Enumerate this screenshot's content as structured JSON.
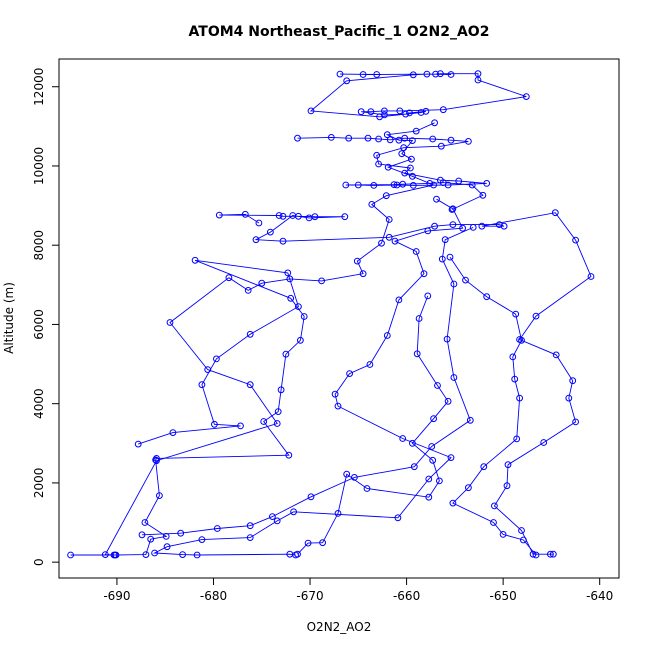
{
  "chart_data": {
    "type": "line",
    "title": "ATOM4 Northeast_Pacific_1 O2N2_AO2",
    "xlabel": "O2N2_AO2",
    "ylabel": "Altitude (m)",
    "xlim": [
      -696,
      -638
    ],
    "ylim": [
      -400,
      12700
    ],
    "x_ticks": [
      -690,
      -680,
      -670,
      -660,
      -650,
      -640
    ],
    "y_ticks": [
      0,
      2000,
      4000,
      6000,
      8000,
      10000,
      12000
    ],
    "marker": "open-circle",
    "colors": {
      "series": "#0000ff",
      "axis": "#000000",
      "background": "#ffffff"
    },
    "grid": false,
    "series": [
      {
        "points": [
          [
            -694.8,
            180
          ],
          [
            -690.3,
            180
          ],
          [
            -690.1,
            180
          ],
          [
            -687.0,
            190
          ],
          [
            -686.5,
            580
          ],
          [
            -684.9,
            650
          ],
          [
            -687.1,
            1000
          ],
          [
            -685.6,
            1680
          ],
          [
            -686.0,
            2580
          ],
          [
            -685.9,
            2620
          ],
          [
            -672.2,
            2700
          ],
          [
            -674.8,
            3550
          ],
          [
            -673.3,
            3800
          ],
          [
            -673.0,
            4350
          ],
          [
            -672.5,
            5250
          ],
          [
            -671.0,
            5600
          ],
          [
            -670.6,
            6200
          ],
          [
            -672.0,
            6660
          ],
          [
            -681.9,
            7620
          ],
          [
            -672.3,
            7300
          ],
          [
            -671.2,
            6450
          ],
          [
            -676.2,
            5750
          ],
          [
            -679.7,
            5130
          ],
          [
            -681.2,
            4480
          ],
          [
            -679.9,
            3480
          ],
          [
            -677.2,
            3440
          ],
          [
            -684.2,
            3270
          ],
          [
            -687.8,
            2980
          ]
        ]
      },
      {
        "points": [
          [
            -675.3,
            8560
          ],
          [
            -676.7,
            8780
          ],
          [
            -679.4,
            8760
          ],
          [
            -673.2,
            8750
          ],
          [
            -672.8,
            8730
          ],
          [
            -671.2,
            8730
          ],
          [
            -669.5,
            8720
          ],
          [
            -666.4,
            8720
          ],
          [
            -670.1,
            8690
          ],
          [
            -671.8,
            8750
          ],
          [
            -674.1,
            8330
          ],
          [
            -675.6,
            8140
          ],
          [
            -672.8,
            8100
          ],
          [
            -661.8,
            8200
          ],
          [
            -657.1,
            8480
          ],
          [
            -655.2,
            8520
          ],
          [
            -650.4,
            8520
          ],
          [
            -649.9,
            8480
          ],
          [
            -652.2,
            8480
          ],
          [
            -644.6,
            8820
          ],
          [
            -642.5,
            8130
          ],
          [
            -640.9,
            7210
          ],
          [
            -646.6,
            6210
          ],
          [
            -648.3,
            5620
          ],
          [
            -644.5,
            5230
          ],
          [
            -642.8,
            4580
          ],
          [
            -643.2,
            4140
          ],
          [
            -642.5,
            3540
          ],
          [
            -645.8,
            3020
          ],
          [
            -649.5,
            2460
          ],
          [
            -649.6,
            1930
          ],
          [
            -650.9,
            1420
          ],
          [
            -648.1,
            800
          ],
          [
            -646.9,
            200
          ],
          [
            -645.1,
            200
          ],
          [
            -644.8,
            200
          ]
        ]
      },
      {
        "points": [
          [
            -666.9,
            12320
          ],
          [
            -663.1,
            12310
          ],
          [
            -664.5,
            12310
          ],
          [
            -657.0,
            12320
          ],
          [
            -656.5,
            12330
          ],
          [
            -652.6,
            12330
          ],
          [
            -652.6,
            12170
          ],
          [
            -647.6,
            11750
          ],
          [
            -656.2,
            11420
          ],
          [
            -660.7,
            11390
          ],
          [
            -662.3,
            11390
          ],
          [
            -663.7,
            11370
          ],
          [
            -664.7,
            11370
          ],
          [
            -662.3,
            11290
          ],
          [
            -660.1,
            11310
          ],
          [
            -659.7,
            11340
          ],
          [
            -658.0,
            11380
          ],
          [
            -658.5,
            11350
          ],
          [
            -662.8,
            11240
          ],
          [
            -669.9,
            11390
          ],
          [
            -666.2,
            12150
          ],
          [
            -659.3,
            12300
          ],
          [
            -657.9,
            12320
          ],
          [
            -655.4,
            12310
          ]
        ]
      },
      {
        "points": [
          [
            -671.3,
            10700
          ],
          [
            -667.8,
            10720
          ],
          [
            -666.0,
            10700
          ],
          [
            -664.0,
            10700
          ],
          [
            -662.9,
            10680
          ],
          [
            -661.7,
            10660
          ],
          [
            -660.2,
            10700
          ],
          [
            -657.3,
            10680
          ],
          [
            -655.4,
            10650
          ],
          [
            -653.6,
            10620
          ],
          [
            -656.4,
            10500
          ],
          [
            -660.3,
            10460
          ],
          [
            -663.1,
            10270
          ],
          [
            -662.9,
            10050
          ],
          [
            -659.6,
            9950
          ],
          [
            -660.2,
            9820
          ],
          [
            -656.5,
            9640
          ],
          [
            -654.6,
            9620
          ],
          [
            -651.7,
            9560
          ],
          [
            -655.7,
            9520
          ],
          [
            -659.3,
            9510
          ],
          [
            -661.0,
            9520
          ],
          [
            -663.4,
            9510
          ],
          [
            -665.0,
            9520
          ],
          [
            -666.3,
            9520
          ],
          [
            -661.3,
            9530
          ],
          [
            -660.4,
            9540
          ],
          [
            -657.6,
            9560
          ],
          [
            -656.2,
            9580
          ],
          [
            -653.2,
            9520
          ],
          [
            -652.1,
            9260
          ],
          [
            -655.3,
            8900
          ]
        ]
      },
      {
        "points": [
          [
            -657.1,
            11090
          ],
          [
            -659.0,
            10880
          ],
          [
            -662.0,
            10790
          ],
          [
            -660.8,
            10650
          ],
          [
            -659.4,
            10640
          ],
          [
            -660.5,
            10310
          ],
          [
            -659.5,
            10170
          ],
          [
            -661.9,
            9970
          ],
          [
            -659.4,
            9740
          ],
          [
            -657.2,
            9520
          ],
          [
            -662.1,
            9250
          ],
          [
            -663.6,
            9030
          ],
          [
            -661.8,
            8650
          ],
          [
            -662.6,
            8050
          ],
          [
            -665.1,
            7600
          ],
          [
            -664.5,
            7280
          ],
          [
            -668.8,
            7100
          ],
          [
            -672.1,
            7150
          ],
          [
            -675.0,
            7040
          ],
          [
            -676.4,
            6860
          ],
          [
            -678.4,
            7180
          ],
          [
            -684.5,
            6050
          ],
          [
            -680.6,
            4860
          ],
          [
            -676.2,
            4480
          ],
          [
            -673.4,
            3500
          ],
          [
            -685.9,
            2560
          ],
          [
            -691.2,
            190
          ],
          [
            -690.2,
            180
          ]
        ]
      },
      {
        "points": [
          [
            -656.9,
            9160
          ],
          [
            -655.2,
            8920
          ],
          [
            -654.2,
            8430
          ],
          [
            -657.8,
            8360
          ],
          [
            -661.2,
            8100
          ],
          [
            -659.0,
            7840
          ],
          [
            -658.2,
            7280
          ],
          [
            -660.8,
            6620
          ],
          [
            -662.0,
            5720
          ],
          [
            -663.8,
            4990
          ],
          [
            -665.9,
            4760
          ],
          [
            -667.4,
            4240
          ],
          [
            -667.1,
            3940
          ],
          [
            -660.4,
            3120
          ],
          [
            -655.4,
            2640
          ],
          [
            -657.7,
            2100
          ],
          [
            -660.9,
            1120
          ],
          [
            -671.7,
            1270
          ],
          [
            -673.4,
            1040
          ],
          [
            -676.2,
            620
          ],
          [
            -681.2,
            570
          ],
          [
            -684.8,
            390
          ],
          [
            -686.1,
            230
          ],
          [
            -683.2,
            190
          ],
          [
            -681.7,
            180
          ],
          [
            -672.1,
            200
          ],
          [
            -671.5,
            180
          ]
        ]
      },
      {
        "points": [
          [
            -657.8,
            6720
          ],
          [
            -658.7,
            6150
          ],
          [
            -658.9,
            5260
          ],
          [
            -656.8,
            4460
          ],
          [
            -655.7,
            4060
          ],
          [
            -657.2,
            3620
          ],
          [
            -659.4,
            3000
          ],
          [
            -657.3,
            2570
          ],
          [
            -656.6,
            2050
          ],
          [
            -657.7,
            1640
          ],
          [
            -664.1,
            1860
          ],
          [
            -666.2,
            2220
          ],
          [
            -667.1,
            1230
          ],
          [
            -668.7,
            490
          ],
          [
            -670.2,
            480
          ],
          [
            -671.3,
            200
          ]
        ]
      },
      {
        "points": [
          [
            -655.5,
            7700
          ],
          [
            -653.9,
            7120
          ],
          [
            -651.7,
            6700
          ],
          [
            -648.7,
            6260
          ],
          [
            -648.1,
            5600
          ],
          [
            -649.0,
            5180
          ],
          [
            -648.8,
            4620
          ],
          [
            -648.3,
            4140
          ],
          [
            -648.6,
            3110
          ],
          [
            -652.0,
            2410
          ],
          [
            -653.6,
            1880
          ],
          [
            -655.2,
            1490
          ],
          [
            -651.0,
            1000
          ],
          [
            -650.0,
            700
          ],
          [
            -647.9,
            560
          ],
          [
            -646.6,
            180
          ]
        ]
      },
      {
        "points": [
          [
            -653.1,
            8450
          ],
          [
            -656.0,
            8140
          ],
          [
            -656.3,
            7650
          ],
          [
            -655.1,
            7020
          ],
          [
            -655.8,
            5630
          ],
          [
            -655.1,
            4660
          ],
          [
            -653.4,
            3580
          ],
          [
            -657.4,
            2920
          ],
          [
            -659.2,
            2410
          ],
          [
            -665.4,
            2140
          ],
          [
            -669.9,
            1650
          ],
          [
            -673.9,
            1150
          ],
          [
            -676.2,
            920
          ],
          [
            -679.6,
            850
          ],
          [
            -683.4,
            730
          ],
          [
            -687.4,
            690
          ]
        ]
      }
    ]
  }
}
